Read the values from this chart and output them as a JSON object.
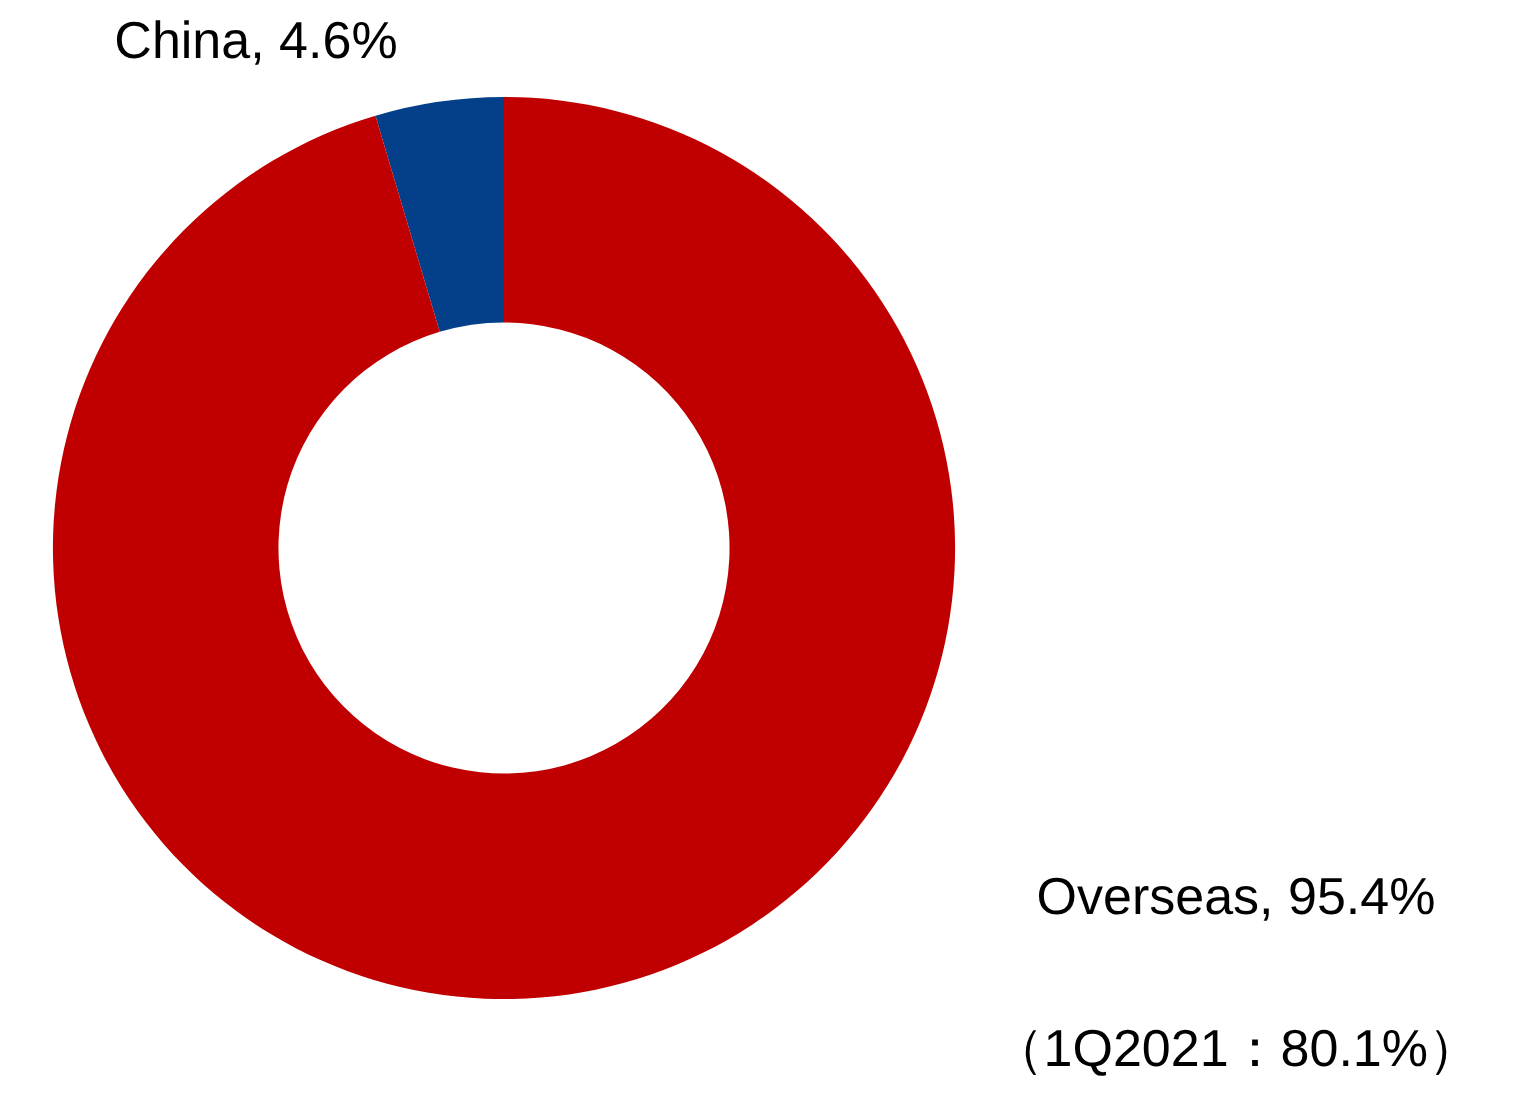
{
  "chart_data": {
    "type": "donut",
    "categories": [
      "China",
      "Overseas"
    ],
    "values": [
      4.6,
      95.4
    ],
    "colors": [
      "#04408a",
      "#c00000"
    ],
    "value_labels": [
      "4.6%",
      "95.4%"
    ],
    "legend": false,
    "annotations": [
      "（1Q2021：80.1%）"
    ]
  }
}
